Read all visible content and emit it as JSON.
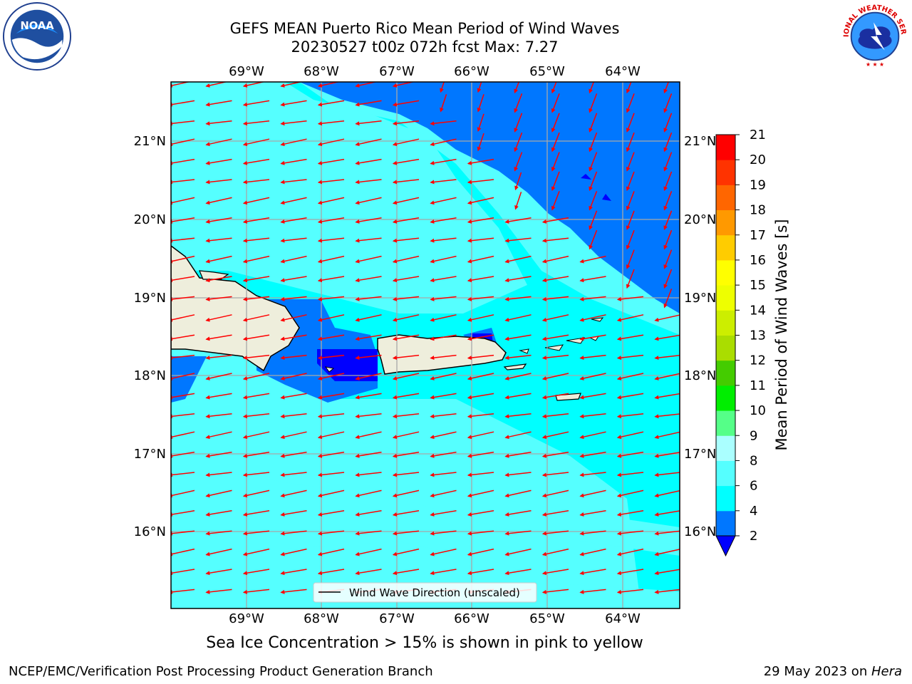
{
  "title": {
    "line1": "GEFS MEAN Puerto Rico Mean Period of Wind Waves",
    "line2": "20230527 t00z 072h fcst   Max: 7.27"
  },
  "map": {
    "lon_labels": [
      "69°W",
      "68°W",
      "67°W",
      "66°W",
      "65°W",
      "64°W"
    ],
    "lat_labels": [
      "21°N",
      "20°N",
      "19°N",
      "18°N",
      "17°N",
      "16°N"
    ],
    "legend_label": "Wind Wave Direction (unscaled)",
    "lon_range": [
      -70.0,
      -63.25
    ],
    "lat_range": [
      15.0,
      21.75
    ],
    "arrow_color": "#ff0000",
    "land_color": "#eeeedc"
  },
  "colorbar": {
    "label": "Mean Period of Wind Waves [s]",
    "ticks": [
      "2",
      "4",
      "6",
      "8",
      "9",
      "10",
      "11",
      "12",
      "13",
      "14",
      "15",
      "16",
      "17",
      "18",
      "19",
      "20",
      "21"
    ],
    "colors": [
      "#0000ff",
      "#0077ff",
      "#00ffff",
      "#55ffff",
      "#aaffff",
      "#55ff88",
      "#00ee00",
      "#44cc00",
      "#aadd00",
      "#ccee00",
      "#eeff00",
      "#ffff00",
      "#ffcc00",
      "#ff9900",
      "#ff6600",
      "#ff3300",
      "#ff0000"
    ]
  },
  "logos": {
    "noaa": "NOAA",
    "nws": "NATIONAL WEATHER SERVICE"
  },
  "note": "Sea Ice Concentration > 15% is shown in pink to yellow",
  "footer": {
    "left": "NCEP/EMC/Verification Post Processing Product Generation Branch",
    "right_prefix": "29 May 2023 on ",
    "right_machine": "Hera"
  }
}
